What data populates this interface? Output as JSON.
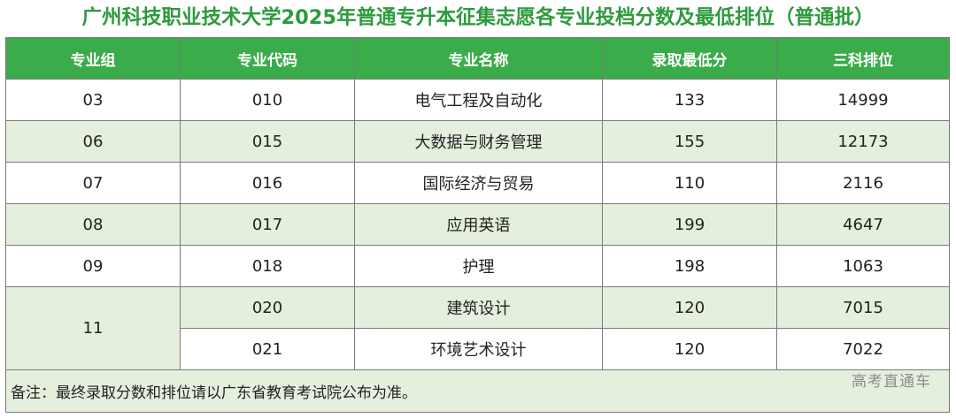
{
  "title": "广州科技职业技术大学2025年普通专升本征集志愿各专业投档分数及最低排位（普通批）",
  "table": {
    "headers": [
      "专业组",
      "专业代码",
      "专业名称",
      "录取最低分",
      "三科排位"
    ],
    "rows": [
      {
        "group": "03",
        "code": "010",
        "name": "电气工程及自动化",
        "min_score": "133",
        "rank": "14999"
      },
      {
        "group": "06",
        "code": "015",
        "name": "大数据与财务管理",
        "min_score": "155",
        "rank": "12173"
      },
      {
        "group": "07",
        "code": "016",
        "name": "国际经济与贸易",
        "min_score": "110",
        "rank": "2116"
      },
      {
        "group": "08",
        "code": "017",
        "name": "应用英语",
        "min_score": "199",
        "rank": "4647"
      },
      {
        "group": "09",
        "code": "018",
        "name": "护理",
        "min_score": "198",
        "rank": "1063"
      },
      {
        "group": "11",
        "code": "020",
        "name": "建筑设计",
        "min_score": "120",
        "rank": "7015"
      },
      {
        "group": "11",
        "code": "021",
        "name": "环境艺术设计",
        "min_score": "120",
        "rank": "7022"
      }
    ],
    "note": "备注：最终录取分数和排位请以广东省教育考试院公布为准。"
  },
  "watermark": "高考直通车",
  "colors": {
    "title": "#2e9a3e",
    "header_bg": "#3aac4a",
    "stripe_bg": "#e4efdd",
    "border": "#7a7a7a"
  }
}
